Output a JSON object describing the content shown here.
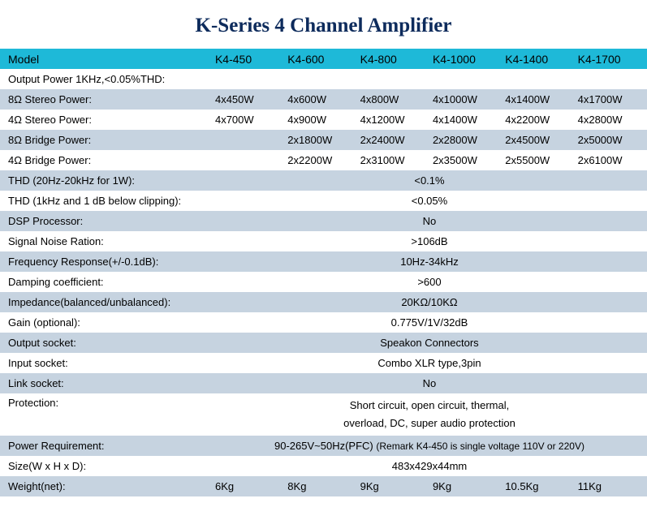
{
  "title": "K-Series 4 Channel Amplifier",
  "colors": {
    "header_bg": "#1eb9d8",
    "shaded_bg": "#c6d3e0",
    "title_color": "#0d2b5c"
  },
  "header": {
    "model_label": "Model",
    "models": [
      "K4-450",
      "K4-600",
      "K4-800",
      "K4-1000",
      "K4-1400",
      "K4-1700"
    ]
  },
  "rows": [
    {
      "shaded": false,
      "label": "Output Power 1KHz,<0.05%THD:",
      "type": "label_only"
    },
    {
      "shaded": true,
      "label": "8Ω  Stereo Power:",
      "type": "cells",
      "values": [
        "4x450W",
        "4x600W",
        "4x800W",
        "4x1000W",
        "4x1400W",
        "4x1700W"
      ]
    },
    {
      "shaded": false,
      "label": "4Ω  Stereo Power:",
      "type": "cells",
      "values": [
        "4x700W",
        "4x900W",
        "4x1200W",
        "4x1400W",
        "4x2200W",
        "4x2800W"
      ]
    },
    {
      "shaded": true,
      "label": "8Ω   Bridge Power:",
      "type": "cells",
      "values": [
        "",
        "2x1800W",
        "2x2400W",
        "2x2800W",
        "2x4500W",
        "2x5000W"
      ]
    },
    {
      "shaded": false,
      "label": "4Ω   Bridge Power:",
      "type": "cells",
      "values": [
        "",
        "2x2200W",
        "2x3100W",
        "2x3500W",
        "2x5500W",
        "2x6100W"
      ]
    },
    {
      "shaded": true,
      "label": "THD (20Hz-20kHz for 1W):",
      "type": "span",
      "value": "<0.1%"
    },
    {
      "shaded": false,
      "label": "THD (1kHz and 1 dB below clipping):",
      "type": "span",
      "value": "<0.05%"
    },
    {
      "shaded": true,
      "label": "DSP Processor:",
      "type": "span",
      "value": "No"
    },
    {
      "shaded": false,
      "label": "Signal Noise Ration:",
      "type": "span",
      "value": ">106dB"
    },
    {
      "shaded": true,
      "label": "Frequency Response(+/-0.1dB):",
      "type": "span",
      "value": "10Hz-34kHz"
    },
    {
      "shaded": false,
      "label": "Damping coefficient:",
      "type": "span",
      "value": ">600"
    },
    {
      "shaded": true,
      "label": "Impedance(balanced/unbalanced):",
      "type": "span",
      "value": "20KΩ/10KΩ"
    },
    {
      "shaded": false,
      "label": "Gain (optional):",
      "type": "span",
      "value": "0.775V/1V/32dB"
    },
    {
      "shaded": true,
      "label": "Output socket:",
      "type": "span",
      "value": "Speakon Connectors"
    },
    {
      "shaded": false,
      "label": "Input socket:",
      "type": "span",
      "value": "Combo XLR type,3pin"
    },
    {
      "shaded": true,
      "label": "Link socket:",
      "type": "span",
      "value": "No"
    },
    {
      "shaded": false,
      "label": "Protection:",
      "type": "multiline",
      "lines": [
        "Short circuit, open circuit, thermal,",
        "overload, DC, super audio protection"
      ]
    },
    {
      "shaded": true,
      "label": "Power Requirement:",
      "type": "power",
      "value": "90-265V~50Hz(PFC)",
      "remark": "(Remark K4-450 is single voltage 110V or 220V)"
    },
    {
      "shaded": false,
      "label": "Size(W x H x D):",
      "type": "span",
      "value": "483x429x44mm"
    },
    {
      "shaded": true,
      "label": "Weight(net):",
      "type": "cells",
      "values": [
        "6Kg",
        "8Kg",
        "9Kg",
        "9Kg",
        "10.5Kg",
        "11Kg"
      ]
    }
  ]
}
